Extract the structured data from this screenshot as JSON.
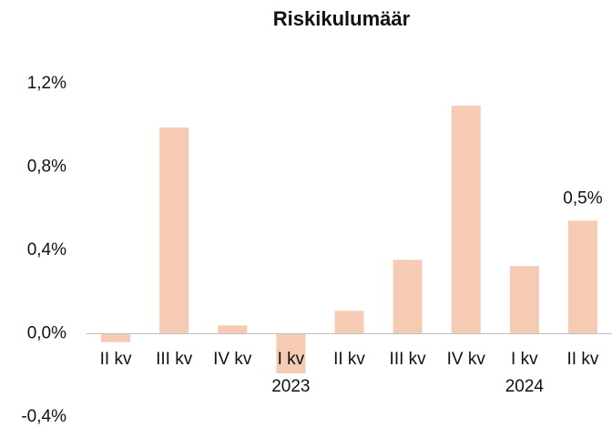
{
  "chart_data": {
    "type": "bar",
    "title": "Riskikulumäär",
    "categories": [
      "II kv",
      "III kv",
      "IV kv",
      "I kv",
      "II kv",
      "III kv",
      "IV kv",
      "I kv",
      "II kv"
    ],
    "years": [
      null,
      null,
      null,
      "2023",
      null,
      null,
      null,
      "2024",
      null
    ],
    "values": [
      -0.04,
      0.99,
      0.04,
      -0.19,
      0.11,
      0.355,
      1.095,
      0.325,
      0.543
    ],
    "value_labels": [
      null,
      null,
      null,
      null,
      null,
      null,
      null,
      null,
      "0,5%"
    ],
    "color": "#f5cbb3",
    "ylim": [
      -0.4,
      1.2
    ],
    "yticks": [
      {
        "value": -0.4,
        "label": "-0,4%"
      },
      {
        "value": 0,
        "label": "0,0%"
      },
      {
        "value": 0.4,
        "label": "0,4%"
      },
      {
        "value": 0.8,
        "label": "0,8%"
      },
      {
        "value": 1.2,
        "label": "1,2%"
      }
    ],
    "grid": false
  }
}
